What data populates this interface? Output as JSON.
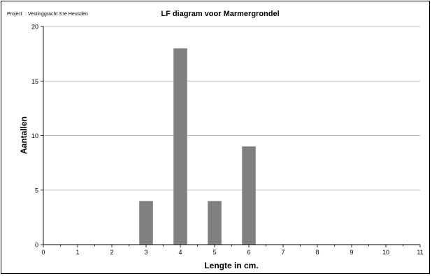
{
  "header": {
    "project_label": "Project",
    "project_value": ": Vestinggracht 3 te Heusden"
  },
  "chart_data": {
    "type": "bar",
    "title": "LF diagram voor Marmergrondel",
    "xlabel": "Lengte in cm.",
    "ylabel": "Aantallen",
    "xlim": [
      0,
      11
    ],
    "ylim": [
      0,
      20
    ],
    "x_ticks": [
      "0",
      "1",
      "2",
      "3",
      "4",
      "5",
      "6",
      "7",
      "8",
      "9",
      "10",
      "11"
    ],
    "y_ticks": [
      "0",
      "5",
      "10",
      "15",
      "20"
    ],
    "x": [
      3,
      4,
      5,
      6
    ],
    "values": [
      4,
      18,
      4,
      9
    ],
    "bar_color": "#808080",
    "grid": true,
    "legend": "none"
  }
}
